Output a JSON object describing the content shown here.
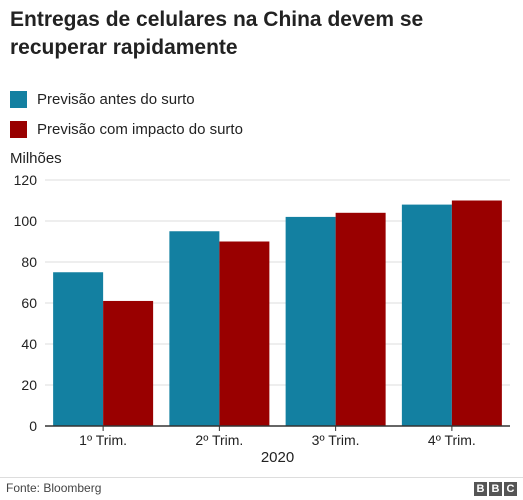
{
  "title": "Entregas de celulares na China devem se recuperar rapidamente",
  "unit_label": "Milhões",
  "source": "Fonte: Bloomberg",
  "logo": [
    "B",
    "B",
    "C"
  ],
  "colors": {
    "before": "#1380a1",
    "impact": "#990000",
    "grid": "#dcdcdc",
    "axis": "#333333"
  },
  "chart_data": {
    "type": "bar",
    "categories": [
      "1º Trim.",
      "2º Trim.",
      "3º Trim.",
      "4º Trim."
    ],
    "xlabel": "2020",
    "ylabel": "Milhões",
    "ylim": [
      0,
      120
    ],
    "yticks": [
      0,
      20,
      40,
      60,
      80,
      100,
      120
    ],
    "grid": true,
    "legend_position": "top-left",
    "series": [
      {
        "name": "Previsão antes do surto",
        "values": [
          75,
          95,
          102,
          108
        ]
      },
      {
        "name": "Previsão com impacto do surto",
        "values": [
          61,
          90,
          104,
          110
        ]
      }
    ]
  }
}
